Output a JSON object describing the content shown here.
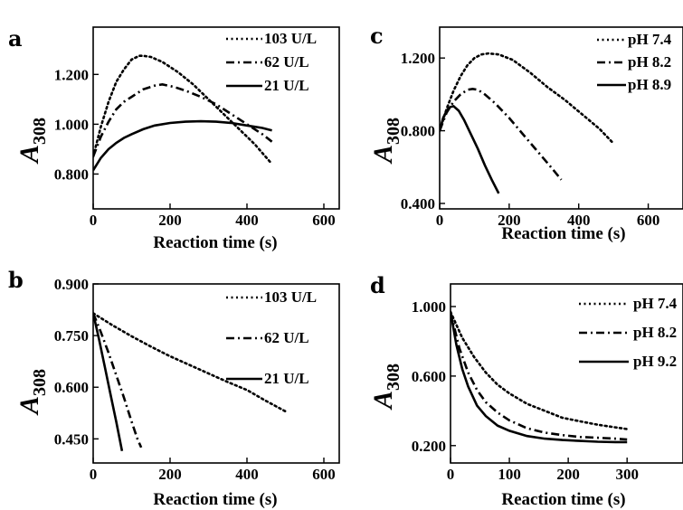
{
  "chart_data": [
    {
      "panel": "a",
      "type": "line",
      "xlabel": "Reaction time (s)",
      "ylabel_main": "A",
      "ylabel_sub": "308",
      "xlim": [
        0,
        640
      ],
      "ylim": [
        0.66,
        1.39
      ],
      "xticks": [
        0,
        200,
        400,
        600
      ],
      "xtick_labels": [
        "0",
        "200",
        "400",
        "600"
      ],
      "yticks": [
        0.8,
        1.0,
        1.2
      ],
      "ytick_labels": [
        "0.800",
        "1.000",
        "1.200"
      ],
      "legend": "top-right",
      "series": [
        {
          "name": "103 U/L",
          "style": "dotted",
          "x": [
            0,
            20,
            40,
            60,
            80,
            100,
            120,
            130,
            150,
            180,
            220,
            260,
            300,
            340,
            380,
            420,
            465
          ],
          "y": [
            0.87,
            0.99,
            1.09,
            1.17,
            1.22,
            1.26,
            1.275,
            1.275,
            1.27,
            1.25,
            1.21,
            1.16,
            1.1,
            1.04,
            0.98,
            0.92,
            0.84
          ]
        },
        {
          "name": "62 U/L",
          "style": "dashdot",
          "x": [
            0,
            20,
            40,
            60,
            80,
            100,
            130,
            160,
            180,
            210,
            240,
            280,
            320,
            360,
            400,
            440,
            465
          ],
          "y": [
            0.87,
            0.95,
            1.01,
            1.06,
            1.09,
            1.11,
            1.14,
            1.155,
            1.16,
            1.15,
            1.135,
            1.11,
            1.08,
            1.04,
            1.0,
            0.96,
            0.93
          ]
        },
        {
          "name": "21 U/L",
          "style": "solid",
          "x": [
            0,
            20,
            40,
            60,
            80,
            100,
            130,
            160,
            200,
            240,
            280,
            320,
            360,
            400,
            440,
            465
          ],
          "y": [
            0.815,
            0.865,
            0.9,
            0.925,
            0.945,
            0.96,
            0.98,
            0.995,
            1.005,
            1.01,
            1.012,
            1.01,
            1.005,
            0.995,
            0.985,
            0.975
          ]
        }
      ]
    },
    {
      "panel": "b",
      "type": "line",
      "xlabel": "Reaction time (s)",
      "ylabel_main": "A",
      "ylabel_sub": "308",
      "xlim": [
        0,
        640
      ],
      "ylim": [
        0.38,
        0.9
      ],
      "xticks": [
        0,
        200,
        400,
        600
      ],
      "xtick_labels": [
        "0",
        "200",
        "400",
        "600"
      ],
      "yticks": [
        0.45,
        0.6,
        0.75,
        0.9
      ],
      "ytick_labels": [
        "0.450",
        "0.600",
        "0.750",
        "0.900"
      ],
      "legend": "top-right",
      "series": [
        {
          "name": "103 U/L",
          "style": "dotted",
          "x": [
            0,
            50,
            100,
            150,
            200,
            250,
            300,
            350,
            400,
            450,
            500
          ],
          "y": [
            0.815,
            0.78,
            0.748,
            0.718,
            0.69,
            0.665,
            0.64,
            0.615,
            0.592,
            0.56,
            0.53
          ]
        },
        {
          "name": "62 U/L",
          "style": "dashdot",
          "x": [
            0,
            20,
            40,
            60,
            80,
            100,
            115,
            125
          ],
          "y": [
            0.815,
            0.76,
            0.7,
            0.635,
            0.57,
            0.5,
            0.45,
            0.425
          ]
        },
        {
          "name": "21 U/L",
          "style": "solid",
          "x": [
            0,
            15,
            30,
            45,
            60,
            75
          ],
          "y": [
            0.815,
            0.74,
            0.66,
            0.58,
            0.5,
            0.415
          ]
        }
      ]
    },
    {
      "panel": "c",
      "type": "line",
      "xlabel": "Reaction time (s)",
      "ylabel_main": "A",
      "ylabel_sub": "308",
      "xlim": [
        0,
        700
      ],
      "ylim": [
        0.37,
        1.37
      ],
      "xticks": [
        0,
        200,
        400,
        600
      ],
      "xtick_labels": [
        "0",
        "200",
        "400",
        "600"
      ],
      "yticks": [
        0.4,
        0.8,
        1.2
      ],
      "ytick_labels": [
        "0.400",
        "0.800",
        "1.200"
      ],
      "legend": "top-right",
      "series": [
        {
          "name": "pH 7.4",
          "style": "dotted",
          "x": [
            0,
            20,
            40,
            60,
            80,
            100,
            120,
            140,
            170,
            210,
            260,
            310,
            360,
            410,
            460,
            500
          ],
          "y": [
            0.8,
            0.92,
            1.02,
            1.1,
            1.16,
            1.2,
            1.22,
            1.225,
            1.22,
            1.19,
            1.12,
            1.04,
            0.97,
            0.89,
            0.81,
            0.73
          ]
        },
        {
          "name": "pH 8.2",
          "style": "dashdot",
          "x": [
            0,
            20,
            40,
            60,
            80,
            95,
            110,
            130,
            160,
            200,
            240,
            280,
            320,
            350
          ],
          "y": [
            0.8,
            0.9,
            0.96,
            1.0,
            1.025,
            1.03,
            1.025,
            1.0,
            0.95,
            0.87,
            0.78,
            0.69,
            0.6,
            0.53
          ]
        },
        {
          "name": "pH 8.9",
          "style": "solid",
          "x": [
            0,
            10,
            20,
            30,
            40,
            55,
            70,
            90,
            110,
            130,
            150,
            170
          ],
          "y": [
            0.8,
            0.87,
            0.91,
            0.93,
            0.935,
            0.91,
            0.86,
            0.78,
            0.7,
            0.61,
            0.53,
            0.455
          ]
        }
      ]
    },
    {
      "panel": "d",
      "type": "line",
      "xlabel": "Reaction time (s)",
      "ylabel_main": "A",
      "ylabel_sub": "308",
      "xlim": [
        0,
        395
      ],
      "ylim": [
        0.1,
        1.13
      ],
      "xticks": [
        0,
        100,
        200,
        300
      ],
      "xtick_labels": [
        "0",
        "100",
        "200",
        "300"
      ],
      "yticks": [
        0.2,
        0.6,
        1.0
      ],
      "ytick_labels": [
        "0.200",
        "0.600",
        "1.000"
      ],
      "legend": "top-right",
      "series": [
        {
          "name": "pH 7.4",
          "style": "dotted",
          "x": [
            0,
            20,
            40,
            60,
            80,
            100,
            130,
            160,
            190,
            220,
            250,
            280,
            300
          ],
          "y": [
            0.97,
            0.82,
            0.71,
            0.62,
            0.55,
            0.5,
            0.44,
            0.4,
            0.36,
            0.34,
            0.32,
            0.305,
            0.295
          ]
        },
        {
          "name": "pH 8.2",
          "style": "dashdot",
          "x": [
            0,
            15,
            30,
            45,
            60,
            80,
            100,
            130,
            160,
            190,
            220,
            250,
            280,
            300
          ],
          "y": [
            0.97,
            0.76,
            0.62,
            0.52,
            0.45,
            0.39,
            0.345,
            0.3,
            0.275,
            0.26,
            0.25,
            0.245,
            0.24,
            0.235
          ]
        },
        {
          "name": "pH 9.2",
          "style": "solid",
          "x": [
            0,
            10,
            20,
            30,
            45,
            60,
            80,
            100,
            130,
            160,
            190,
            220,
            250,
            280,
            300
          ],
          "y": [
            0.97,
            0.78,
            0.64,
            0.54,
            0.43,
            0.37,
            0.315,
            0.285,
            0.255,
            0.24,
            0.232,
            0.227,
            0.222,
            0.22,
            0.22
          ]
        }
      ]
    }
  ]
}
